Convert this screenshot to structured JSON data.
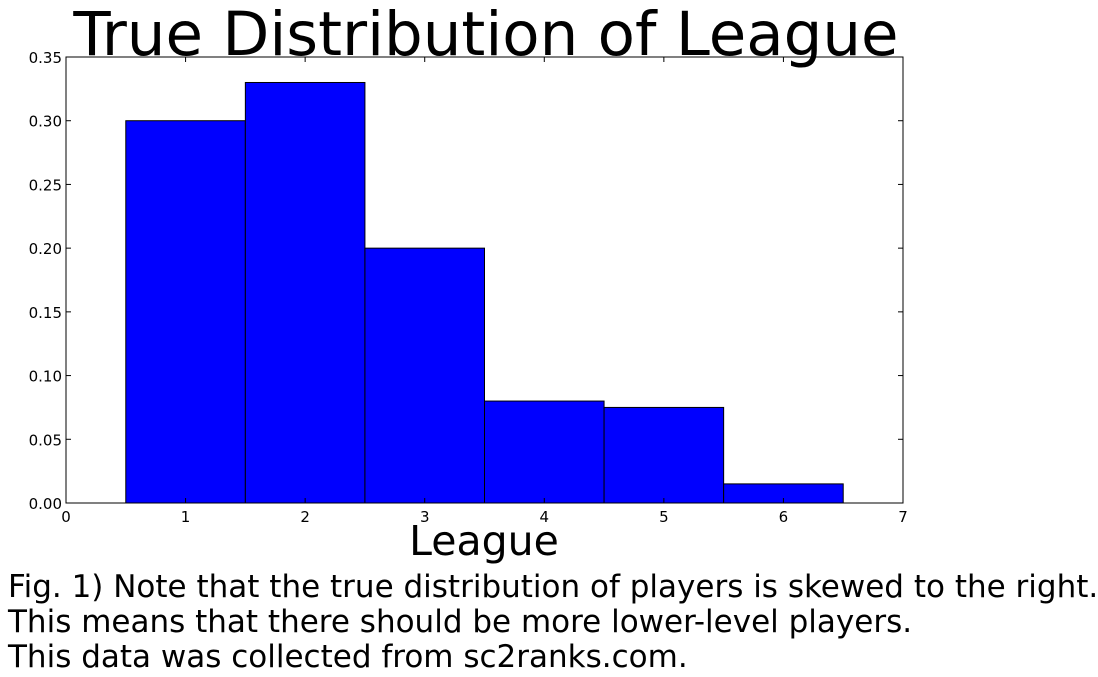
{
  "chart_data": {
    "type": "bar",
    "title": "True Distribution of League",
    "xlabel": "League",
    "ylabel": "",
    "categories": [
      1,
      2,
      3,
      4,
      5,
      6
    ],
    "values": [
      0.3,
      0.33,
      0.2,
      0.08,
      0.075,
      0.015
    ],
    "bar_color": "#0000ff",
    "xlim": [
      0,
      7
    ],
    "ylim": [
      0,
      0.35
    ],
    "xticks": [
      "0",
      "1",
      "2",
      "3",
      "4",
      "5",
      "6",
      "7"
    ],
    "yticks": [
      "0.00",
      "0.05",
      "0.10",
      "0.15",
      "0.20",
      "0.25",
      "0.30",
      "0.35"
    ],
    "grid": false,
    "legend": "none"
  },
  "caption": {
    "line1": "Fig. 1) Note that the true distribution of players is skewed to the right.",
    "line2": "This means that there should be more lower-level players.",
    "line3": "This data was collected from sc2ranks.com."
  }
}
